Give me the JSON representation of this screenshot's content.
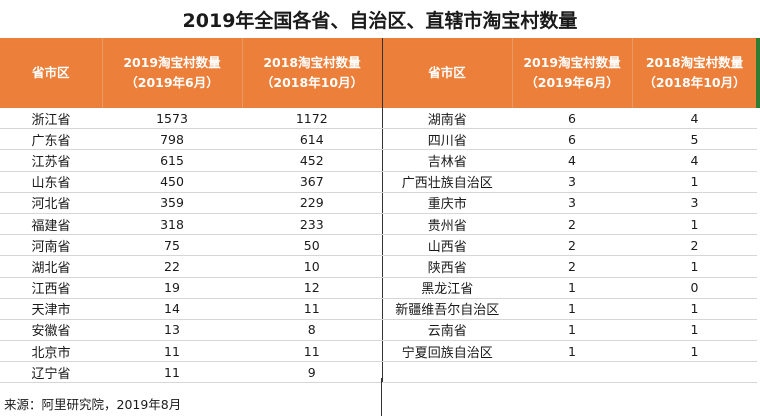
{
  "title": "2019年全国各省、自治区、直辖市淘宝村数量",
  "header": {
    "left_province": "省市区",
    "left_2019_l1": "2019淘宝村数量",
    "left_2019_l2": "（2019年6月）",
    "left_2018_l1": "2018淘宝村数量",
    "left_2018_l2": "（2018年10月）",
    "right_province": "省市区",
    "right_2019_l1": "2019淘宝村数量",
    "right_2019_l2": "（2019年6月）",
    "right_2018_l1": "2018淘宝村数量",
    "right_2018_l2": "（2018年10月）"
  },
  "rows": [
    {
      "lp": "浙江省",
      "l19": "1573",
      "l18": "1172",
      "rp": "湖南省",
      "r19": "6",
      "r18": "4"
    },
    {
      "lp": "广东省",
      "l19": "798",
      "l18": "614",
      "rp": "四川省",
      "r19": "6",
      "r18": "5"
    },
    {
      "lp": "江苏省",
      "l19": "615",
      "l18": "452",
      "rp": "吉林省",
      "r19": "4",
      "r18": "4"
    },
    {
      "lp": "山东省",
      "l19": "450",
      "l18": "367",
      "rp": "广西壮族自治区",
      "r19": "3",
      "r18": "1"
    },
    {
      "lp": "河北省",
      "l19": "359",
      "l18": "229",
      "rp": "重庆市",
      "r19": "3",
      "r18": "3"
    },
    {
      "lp": "福建省",
      "l19": "318",
      "l18": "233",
      "rp": "贵州省",
      "r19": "2",
      "r18": "1"
    },
    {
      "lp": "河南省",
      "l19": "75",
      "l18": "50",
      "rp": "山西省",
      "r19": "2",
      "r18": "2"
    },
    {
      "lp": "湖北省",
      "l19": "22",
      "l18": "10",
      "rp": "陕西省",
      "r19": "2",
      "r18": "1"
    },
    {
      "lp": "江西省",
      "l19": "19",
      "l18": "12",
      "rp": "黑龙江省",
      "r19": "1",
      "r18": "0"
    },
    {
      "lp": "天津市",
      "l19": "14",
      "l18": "11",
      "rp": "新疆维吾尔自治区",
      "r19": "1",
      "r18": "1"
    },
    {
      "lp": "安徽省",
      "l19": "13",
      "l18": "8",
      "rp": "云南省",
      "r19": "1",
      "r18": "1"
    },
    {
      "lp": "北京市",
      "l19": "11",
      "l18": "11",
      "rp": "宁夏回族自治区",
      "r19": "1",
      "r18": "1"
    },
    {
      "lp": "辽宁省",
      "l19": "11",
      "l18": "9",
      "rp": "",
      "r19": "",
      "r18": ""
    }
  ],
  "source": "来源：阿里研究院，2019年8月",
  "colors": {
    "header_bg": "#ec7f3a",
    "header_text": "#ffffff",
    "accent_bar": "#2e7d32"
  }
}
